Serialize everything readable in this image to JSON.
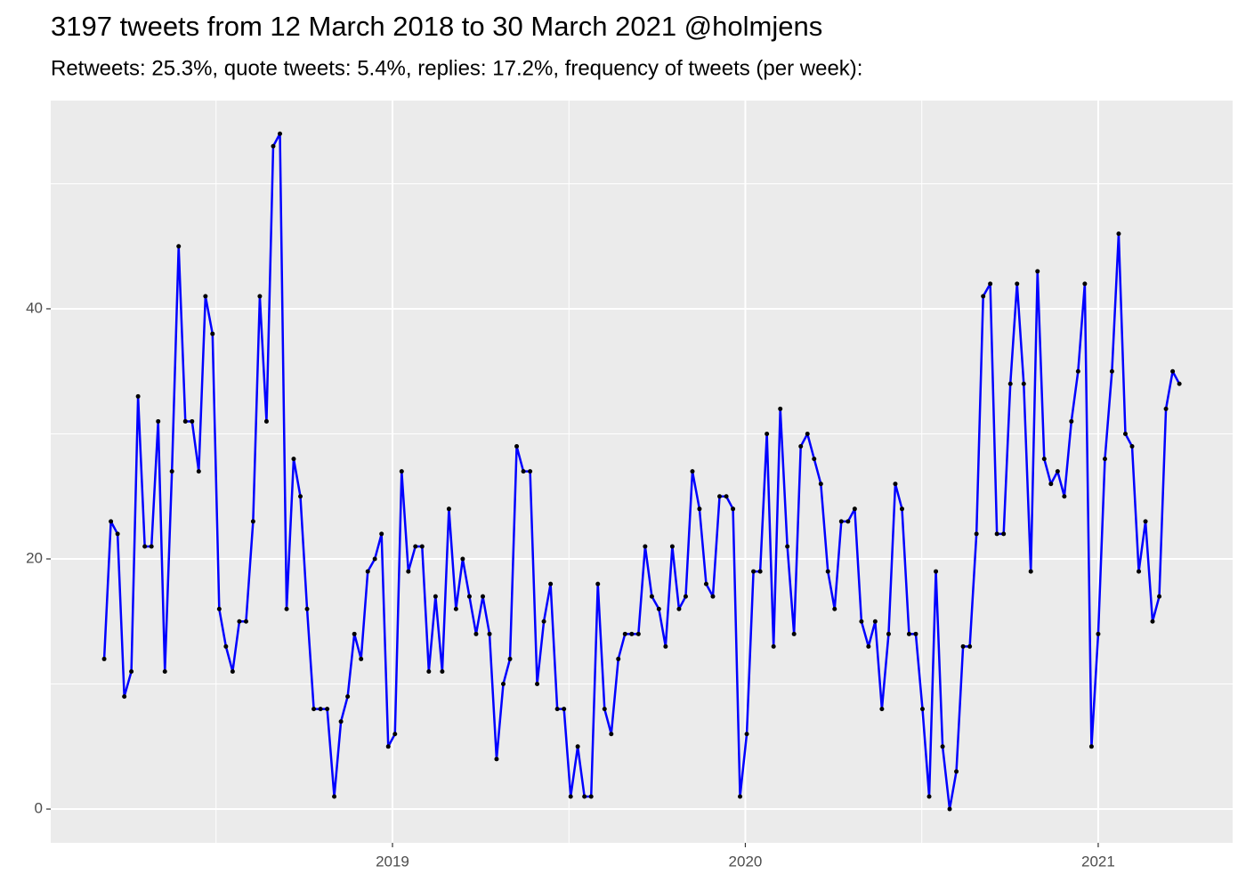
{
  "chart_data": {
    "type": "line",
    "title": "3197 tweets from 12 March 2018 to 30 March 2021 @holmjens",
    "subtitle": "Retweets: 25.3%, quote tweets: 5.4%, replies: 17.2%, frequency of tweets (per week):",
    "x": [
      2018.183,
      2018.202,
      2018.221,
      2018.24,
      2018.26,
      2018.279,
      2018.298,
      2018.317,
      2018.336,
      2018.355,
      2018.375,
      2018.394,
      2018.413,
      2018.432,
      2018.451,
      2018.47,
      2018.49,
      2018.509,
      2018.528,
      2018.547,
      2018.566,
      2018.585,
      2018.605,
      2018.624,
      2018.643,
      2018.662,
      2018.681,
      2018.7,
      2018.72,
      2018.739,
      2018.758,
      2018.777,
      2018.796,
      2018.815,
      2018.835,
      2018.854,
      2018.873,
      2018.892,
      2018.911,
      2018.93,
      2018.95,
      2018.969,
      2018.988,
      2019.007,
      2019.026,
      2019.045,
      2019.065,
      2019.084,
      2019.103,
      2019.122,
      2019.141,
      2019.16,
      2019.18,
      2019.199,
      2019.218,
      2019.237,
      2019.256,
      2019.275,
      2019.295,
      2019.314,
      2019.333,
      2019.352,
      2019.371,
      2019.39,
      2019.41,
      2019.429,
      2019.448,
      2019.467,
      2019.486,
      2019.505,
      2019.525,
      2019.544,
      2019.563,
      2019.582,
      2019.601,
      2019.62,
      2019.64,
      2019.659,
      2019.678,
      2019.697,
      2019.716,
      2019.735,
      2019.755,
      2019.774,
      2019.793,
      2019.812,
      2019.831,
      2019.85,
      2019.87,
      2019.889,
      2019.908,
      2019.927,
      2019.946,
      2019.965,
      2019.985,
      2020.004,
      2020.023,
      2020.042,
      2020.061,
      2020.08,
      2020.099,
      2020.119,
      2020.138,
      2020.157,
      2020.176,
      2020.195,
      2020.214,
      2020.234,
      2020.253,
      2020.272,
      2020.291,
      2020.31,
      2020.329,
      2020.349,
      2020.368,
      2020.387,
      2020.406,
      2020.425,
      2020.444,
      2020.464,
      2020.483,
      2020.502,
      2020.521,
      2020.54,
      2020.559,
      2020.579,
      2020.598,
      2020.617,
      2020.636,
      2020.655,
      2020.674,
      2020.694,
      2020.713,
      2020.732,
      2020.751,
      2020.77,
      2020.789,
      2020.809,
      2020.828,
      2020.847,
      2020.866,
      2020.885,
      2020.904,
      2020.924,
      2020.943,
      2020.962,
      2020.981,
      2021.0,
      2021.019,
      2021.039,
      2021.058,
      2021.077,
      2021.096,
      2021.115,
      2021.134,
      2021.154,
      2021.173,
      2021.192,
      2021.211,
      2021.23
    ],
    "series": [
      {
        "color": "#0000ff",
        "point_color": "#000000",
        "values": [
          12,
          23,
          22,
          9,
          11,
          33,
          21,
          21,
          31,
          11,
          27,
          45,
          31,
          31,
          27,
          41,
          38,
          16,
          13,
          11,
          15,
          15,
          23,
          41,
          31,
          53,
          54,
          16,
          28,
          25,
          16,
          8,
          8,
          8,
          1,
          7,
          9,
          14,
          12,
          19,
          20,
          22,
          5,
          6,
          27,
          19,
          21,
          21,
          11,
          17,
          11,
          24,
          16,
          20,
          17,
          14,
          17,
          14,
          4,
          10,
          12,
          29,
          27,
          27,
          10,
          15,
          18,
          8,
          8,
          1,
          5,
          1,
          1,
          18,
          8,
          6,
          12,
          14,
          14,
          14,
          21,
          17,
          16,
          13,
          21,
          16,
          17,
          27,
          24,
          18,
          17,
          25,
          25,
          24,
          1,
          6,
          19,
          19,
          30,
          13,
          32,
          21,
          14,
          29,
          30,
          28,
          26,
          19,
          16,
          23,
          23,
          24,
          15,
          13,
          15,
          8,
          14,
          26,
          24,
          14,
          14,
          8,
          1,
          19,
          5,
          0,
          3,
          13,
          13,
          22,
          41,
          42,
          22,
          22,
          34,
          42,
          34,
          19,
          43,
          28,
          26,
          27,
          25,
          31,
          35,
          42,
          5,
          14,
          28,
          35,
          46,
          30,
          29,
          19,
          23,
          15,
          17,
          32,
          35,
          34
        ]
      }
    ],
    "xlim": [
      2018.0315,
      2021.381
    ],
    "xticks": [
      2019,
      2020,
      2021
    ],
    "x_minor_breaks": [
      2018.5,
      2019.5,
      2020.5
    ],
    "ylim": [
      -2.7,
      56.65
    ],
    "yticks": [
      0,
      20,
      40
    ],
    "y_minor_breaks": [
      10,
      30,
      50
    ],
    "grid": true
  }
}
